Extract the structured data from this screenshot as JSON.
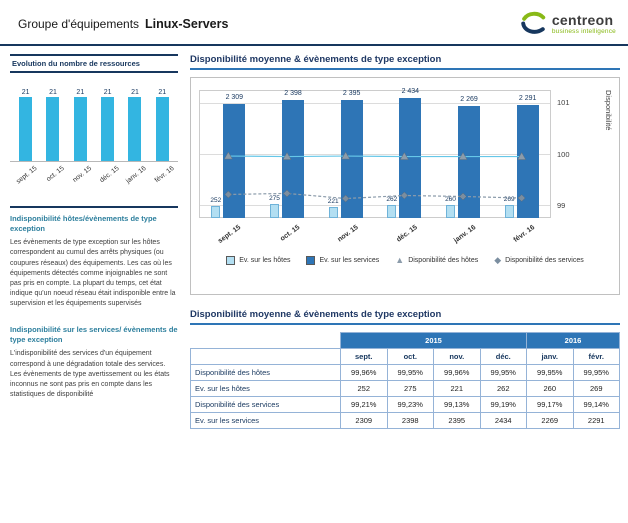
{
  "colors": {
    "navy": "#17375e",
    "accent_blue": "#2e75b6",
    "cyan": "#33b5e1",
    "light_bar": "#b3dff2",
    "green": "#88b917",
    "heading_teal": "#2d7f9d"
  },
  "header": {
    "title_prefix": "Groupe d'équipements",
    "title_name": "Linux-Servers",
    "logo_text": "centreon",
    "logo_subtitle": "business intelligence"
  },
  "sidebar": {
    "resources_title": "Evolution du nombre de ressources",
    "sections": [
      {
        "title": "Indisponibilité  hôtes/évènements de type exception",
        "body": "Les évènements de type exception sur les hôtes correspondent au cumul des arrêts physiques (ou coupures réseaux) des équipements. Les cas où les équipements détectés comme injoignables ne sont pas pris en compte. La plupart du temps, cet état indique qu'un noeud réseau était indisponible entre la supervision et les équipements supervisés"
      },
      {
        "title": "Indisponibilité sur les services/ évènements de type exception",
        "body": "L'indisponibilité des services d'un équipement correspond à une dégradation totale des services. Les évènements de type avertissement ou les états inconnus ne sont pas pris en compte dans les statistiques de disponibilité"
      }
    ]
  },
  "main": {
    "chart_section_title": "Disponibilité moyenne & évènements de type exception",
    "table_section_title": "Disponibilité moyenne & évènements de type exception",
    "legend": [
      {
        "label": "Ev. sur les hôtes",
        "type": "swatch",
        "color": "#b3dff2"
      },
      {
        "label": "Ev. sur les services",
        "type": "swatch",
        "color": "#2e75b6"
      },
      {
        "label": "Disponibilité des hôtes",
        "type": "triangle",
        "color": "#8c9cab"
      },
      {
        "label": "Disponibilité des services",
        "type": "diamond",
        "color": "#7b8ea0"
      }
    ],
    "table": {
      "year_groups": [
        {
          "label": "2015",
          "span": 4
        },
        {
          "label": "2016",
          "span": 2
        }
      ],
      "months": [
        "sept.",
        "oct.",
        "nov.",
        "déc.",
        "janv.",
        "févr."
      ],
      "rows": [
        {
          "label": "Disponibilité des hôtes",
          "values": [
            "99,96%",
            "99,95%",
            "99,96%",
            "99,95%",
            "99,95%",
            "99,95%"
          ]
        },
        {
          "label": "Ev. sur les hôtes",
          "values": [
            "252",
            "275",
            "221",
            "262",
            "260",
            "269"
          ]
        },
        {
          "label": "Disponibilité des services",
          "values": [
            "99,21%",
            "99,23%",
            "99,13%",
            "99,19%",
            "99,17%",
            "99,14%"
          ]
        },
        {
          "label": "Ev. sur les services",
          "values": [
            "2309",
            "2398",
            "2395",
            "2434",
            "2269",
            "2291"
          ]
        }
      ]
    }
  },
  "chart_data": [
    {
      "name": "resources-evolution",
      "type": "bar",
      "title": "Evolution du nombre de ressources",
      "categories": [
        "sept. 15",
        "oct. 15",
        "nov. 15",
        "déc. 15",
        "janv. 16",
        "févr. 16"
      ],
      "values": [
        21,
        21,
        21,
        21,
        21,
        21
      ],
      "ylim": [
        0,
        21
      ],
      "grid": false,
      "legend_position": "none"
    },
    {
      "name": "availability-and-events",
      "type": "bar",
      "title": "Disponibilité moyenne & évènements de type exception",
      "categories": [
        "sept. 15",
        "oct. 15",
        "nov. 15",
        "déc. 15",
        "janv. 16",
        "févr. 16"
      ],
      "series": [
        {
          "name": "Ev. sur les hôtes",
          "kind": "bar",
          "axis": "left",
          "values": [
            252,
            275,
            221,
            262,
            260,
            269
          ],
          "labels": [
            "252",
            "275",
            "221",
            "262",
            "260",
            "269"
          ]
        },
        {
          "name": "Ev. sur les services",
          "kind": "bar",
          "axis": "left",
          "values": [
            2309,
            2398,
            2395,
            2434,
            2269,
            2291
          ],
          "labels": [
            "2 309",
            "2 398",
            "2 395",
            "2 434",
            "2 269",
            "2 291"
          ]
        },
        {
          "name": "Disponibilité des hôtes",
          "kind": "line",
          "marker": "triangle",
          "axis": "right",
          "values": [
            99.96,
            99.95,
            99.96,
            99.95,
            99.95,
            99.95
          ]
        },
        {
          "name": "Disponibilité des services",
          "kind": "line",
          "marker": "diamond",
          "axis": "right",
          "values": [
            99.21,
            99.23,
            99.13,
            99.19,
            99.17,
            99.14
          ]
        }
      ],
      "left_axis": {
        "range": [
          0,
          2600
        ],
        "visible": false
      },
      "right_axis": {
        "label": "Disponibilité",
        "ticks": [
          99,
          100,
          101
        ],
        "range": [
          98.75,
          101.25
        ]
      },
      "grid": true,
      "legend_position": "bottom"
    }
  ]
}
